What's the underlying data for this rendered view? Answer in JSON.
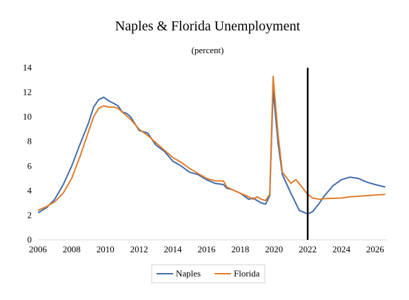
{
  "chart_data": {
    "type": "line",
    "title": "Naples & Florida Unemployment",
    "subtitle": "(percent)",
    "xlabel": "",
    "ylabel": "",
    "xlim": [
      2006,
      2026.7
    ],
    "ylim": [
      0,
      14
    ],
    "x_ticks": [
      "2006",
      "2008",
      "2010",
      "2012",
      "2014",
      "2016",
      "2018",
      "2020",
      "2022",
      "2024",
      "2026"
    ],
    "y_ticks": [
      "0",
      "2",
      "4",
      "6",
      "8",
      "10",
      "12",
      "14"
    ],
    "grid": false,
    "legend_position": "bottom",
    "vline_x": 2022.0,
    "series": [
      {
        "name": "Naples",
        "color": "#3f6bad",
        "points": [
          [
            2006.0,
            2.2
          ],
          [
            2006.5,
            2.6
          ],
          [
            2007.0,
            3.3
          ],
          [
            2007.5,
            4.5
          ],
          [
            2008.0,
            6.0
          ],
          [
            2008.5,
            7.8
          ],
          [
            2009.0,
            9.5
          ],
          [
            2009.3,
            10.8
          ],
          [
            2009.6,
            11.4
          ],
          [
            2009.9,
            11.6
          ],
          [
            2010.2,
            11.3
          ],
          [
            2010.5,
            11.1
          ],
          [
            2010.75,
            10.9
          ],
          [
            2011.0,
            10.4
          ],
          [
            2011.25,
            10.3
          ],
          [
            2011.5,
            10.0
          ],
          [
            2012.0,
            8.9
          ],
          [
            2012.25,
            8.8
          ],
          [
            2012.5,
            8.7
          ],
          [
            2013.0,
            7.7
          ],
          [
            2013.5,
            7.2
          ],
          [
            2014.0,
            6.4
          ],
          [
            2014.5,
            6.0
          ],
          [
            2015.0,
            5.5
          ],
          [
            2015.5,
            5.3
          ],
          [
            2016.0,
            4.9
          ],
          [
            2016.5,
            4.6
          ],
          [
            2017.0,
            4.5
          ],
          [
            2017.2,
            4.2
          ],
          [
            2017.5,
            4.1
          ],
          [
            2018.0,
            3.8
          ],
          [
            2018.5,
            3.3
          ],
          [
            2018.75,
            3.4
          ],
          [
            2019.0,
            3.2
          ],
          [
            2019.25,
            3.0
          ],
          [
            2019.5,
            2.9
          ],
          [
            2019.75,
            3.6
          ],
          [
            2019.95,
            12.2
          ],
          [
            2020.25,
            7.8
          ],
          [
            2020.5,
            5.3
          ],
          [
            2021.0,
            3.8
          ],
          [
            2021.5,
            2.4
          ],
          [
            2022.0,
            2.1
          ],
          [
            2022.3,
            2.3
          ],
          [
            2022.7,
            3.0
          ],
          [
            2023.0,
            3.6
          ],
          [
            2023.5,
            4.4
          ],
          [
            2024.0,
            4.9
          ],
          [
            2024.5,
            5.1
          ],
          [
            2025.0,
            5.0
          ],
          [
            2025.5,
            4.7
          ],
          [
            2026.0,
            4.5
          ],
          [
            2026.6,
            4.3
          ]
        ]
      },
      {
        "name": "Florida",
        "color": "#e07b2a",
        "points": [
          [
            2006.0,
            2.4
          ],
          [
            2006.5,
            2.7
          ],
          [
            2007.0,
            3.1
          ],
          [
            2007.5,
            3.8
          ],
          [
            2008.0,
            5.0
          ],
          [
            2008.5,
            6.8
          ],
          [
            2009.0,
            8.8
          ],
          [
            2009.3,
            10.0
          ],
          [
            2009.6,
            10.7
          ],
          [
            2009.9,
            10.9
          ],
          [
            2010.2,
            10.8
          ],
          [
            2010.5,
            10.8
          ],
          [
            2010.75,
            10.7
          ],
          [
            2011.0,
            10.4
          ],
          [
            2011.25,
            10.1
          ],
          [
            2011.5,
            9.8
          ],
          [
            2012.0,
            9.0
          ],
          [
            2012.5,
            8.5
          ],
          [
            2013.0,
            7.9
          ],
          [
            2013.5,
            7.3
          ],
          [
            2014.0,
            6.7
          ],
          [
            2014.5,
            6.3
          ],
          [
            2015.0,
            5.8
          ],
          [
            2015.5,
            5.4
          ],
          [
            2016.0,
            5.0
          ],
          [
            2016.5,
            4.8
          ],
          [
            2017.0,
            4.8
          ],
          [
            2017.2,
            4.3
          ],
          [
            2017.5,
            4.1
          ],
          [
            2018.0,
            3.8
          ],
          [
            2018.5,
            3.5
          ],
          [
            2018.75,
            3.3
          ],
          [
            2019.0,
            3.5
          ],
          [
            2019.25,
            3.3
          ],
          [
            2019.5,
            3.2
          ],
          [
            2019.75,
            3.7
          ],
          [
            2019.95,
            13.3
          ],
          [
            2020.25,
            8.5
          ],
          [
            2020.5,
            5.5
          ],
          [
            2021.0,
            4.6
          ],
          [
            2021.3,
            4.9
          ],
          [
            2021.6,
            4.4
          ],
          [
            2022.0,
            3.7
          ],
          [
            2022.3,
            3.4
          ],
          [
            2022.7,
            3.3
          ],
          [
            2023.0,
            3.35
          ],
          [
            2024.0,
            3.4
          ],
          [
            2024.5,
            3.5
          ],
          [
            2025.0,
            3.55
          ],
          [
            2025.5,
            3.6
          ],
          [
            2026.0,
            3.65
          ],
          [
            2026.6,
            3.7
          ]
        ]
      }
    ]
  }
}
